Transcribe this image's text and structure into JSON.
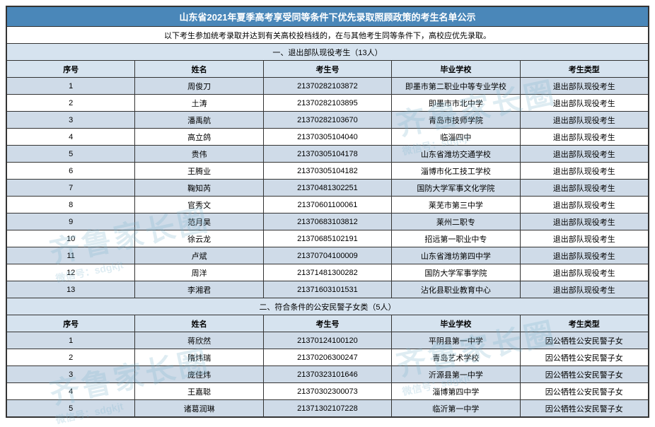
{
  "title": "山东省2021年夏季高考享受同等条件下优先录取照顾政策的考生名单公示",
  "instruction": "以下考生参加统考录取并达到有关高校投档线的，在与其他考生同等条件下，高校应优先录取。",
  "columns": {
    "idx": "序号",
    "name": "姓名",
    "exam": "考生号",
    "school": "毕业学校",
    "type": "考生类型"
  },
  "sections": [
    {
      "heading": "一、退出部队现役考生（13人）",
      "rows": [
        {
          "idx": "1",
          "name": "周俊刀",
          "exam": "21370282103872",
          "school": "即墨市第二职业中等专业学校",
          "type": "退出部队现役考生"
        },
        {
          "idx": "2",
          "name": "土涛",
          "exam": "21370282103895",
          "school": "即墨市市北中学",
          "type": "退出部队现役考生"
        },
        {
          "idx": "3",
          "name": "潘禹航",
          "exam": "21370282103670",
          "school": "青岛市技师学院",
          "type": "退出部队现役考生"
        },
        {
          "idx": "4",
          "name": "高立鸽",
          "exam": "21370305104040",
          "school": "临淄四中",
          "type": "退出部队现役考生"
        },
        {
          "idx": "5",
          "name": "贵伟",
          "exam": "21370305104178",
          "school": "山东省潍坊交通学校",
          "type": "退出部队现役考生"
        },
        {
          "idx": "6",
          "name": "王腾业",
          "exam": "21370305104182",
          "school": "淄博市化工技工学校",
          "type": "退出部队现役考生"
        },
        {
          "idx": "7",
          "name": "鞠知芮",
          "exam": "21370481302251",
          "school": "国防大学军事文化学院",
          "type": "退出部队现役考生"
        },
        {
          "idx": "8",
          "name": "官秀文",
          "exam": "21370601100061",
          "school": "莱芜市第三中学",
          "type": "退出部队现役考生"
        },
        {
          "idx": "9",
          "name": "范月昊",
          "exam": "21370683103812",
          "school": "莱州二职专",
          "type": "退出部队现役考生"
        },
        {
          "idx": "10",
          "name": "徐云龙",
          "exam": "21370685102191",
          "school": "招远第一职业中专",
          "type": "退出部队现役考生"
        },
        {
          "idx": "11",
          "name": "卢斌",
          "exam": "21370704100009",
          "school": "山东省潍坊第四中学",
          "type": "退出部队现役考生"
        },
        {
          "idx": "12",
          "name": "周洋",
          "exam": "21371481300282",
          "school": "国防大学军事学院",
          "type": "退出部队现役考生"
        },
        {
          "idx": "13",
          "name": "李湘君",
          "exam": "21371603101531",
          "school": "沾化县职业教育中心",
          "type": "退出部队现役考生"
        }
      ]
    },
    {
      "heading": "二、符合条件的公安民警子女类（5人）",
      "rows": [
        {
          "idx": "1",
          "name": "蒋欣然",
          "exam": "21370124100120",
          "school": "平阴县第一中学",
          "type": "因公牺牲公安民警子女"
        },
        {
          "idx": "2",
          "name": "隋炜瑞",
          "exam": "21370206300247",
          "school": "青岛艺术学校",
          "type": "因公牺牲公安民警子女"
        },
        {
          "idx": "3",
          "name": "庞佳炜",
          "exam": "21370323101646",
          "school": "沂源县第一中学",
          "type": "因公牺牲公安民警子女"
        },
        {
          "idx": "4",
          "name": "王嘉聪",
          "exam": "21370302300073",
          "school": "淄博第四中学",
          "type": "因公牺牲公安民警子女"
        },
        {
          "idx": "5",
          "name": "诸葛润琳",
          "exam": "21371302107228",
          "school": "临沂第一中学",
          "type": "因公牺牲公安民警子女"
        }
      ]
    }
  ],
  "watermark": {
    "big": "齐鲁家长圈",
    "small": "微信号：sdgkjt"
  },
  "colors": {
    "title_bg": "#4a87b9",
    "title_fg": "#ffffff",
    "band_bg": "#d6e3ef",
    "row_odd": "#cfdbe8",
    "row_even": "#ffffff",
    "border": "#333333"
  }
}
